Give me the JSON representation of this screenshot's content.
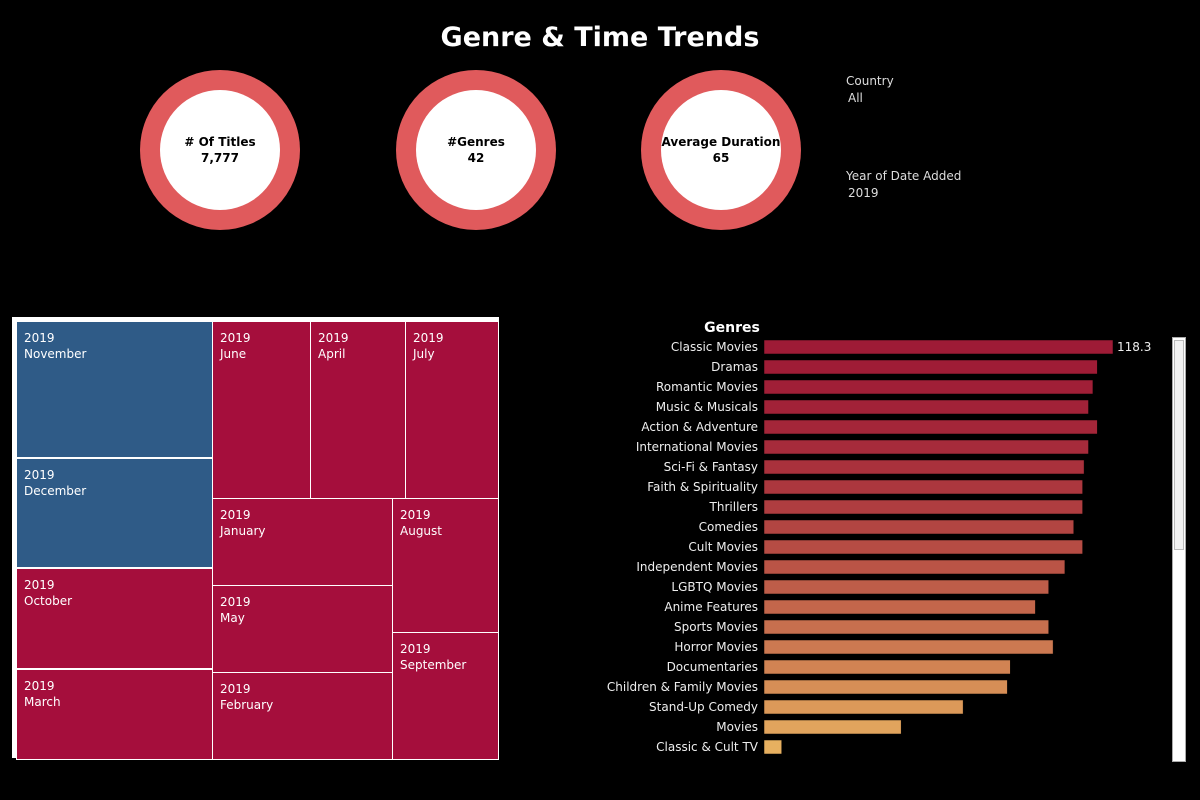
{
  "dashboard": {
    "title": "Genre & Time Trends"
  },
  "kpis": [
    {
      "label": "# Of Titles",
      "value": "7,777"
    },
    {
      "label": "#Genres",
      "value": "42"
    },
    {
      "label": "Average Duration",
      "value": "65"
    }
  ],
  "filters": {
    "country": {
      "label": "Country",
      "value": "All"
    },
    "year": {
      "label": "Year of Date Added",
      "value": "2019"
    }
  },
  "colors": {
    "kpi_ring": "#e05a5c",
    "treemap_blue": "#2f5b87",
    "treemap_red": "#a50e3c",
    "bar_top": "#9e1b36",
    "bar_bottom": "#e7b060"
  },
  "chart_data": [
    {
      "type": "treemap",
      "tiles": [
        {
          "year": "2019",
          "month": "November",
          "color": "#2f5b87"
        },
        {
          "year": "2019",
          "month": "December",
          "color": "#2f5b87"
        },
        {
          "year": "2019",
          "month": "October",
          "color": "#a50e3c"
        },
        {
          "year": "2019",
          "month": "March",
          "color": "#a50e3c"
        },
        {
          "year": "2019",
          "month": "June",
          "color": "#a50e3c"
        },
        {
          "year": "2019",
          "month": "April",
          "color": "#a50e3c"
        },
        {
          "year": "2019",
          "month": "July",
          "color": "#a50e3c"
        },
        {
          "year": "2019",
          "month": "January",
          "color": "#a50e3c"
        },
        {
          "year": "2019",
          "month": "May",
          "color": "#a50e3c"
        },
        {
          "year": "2019",
          "month": "February",
          "color": "#a50e3c"
        },
        {
          "year": "2019",
          "month": "August",
          "color": "#a50e3c"
        },
        {
          "year": "2019",
          "month": "September",
          "color": "#a50e3c"
        }
      ]
    },
    {
      "type": "bar",
      "orientation": "horizontal",
      "title": "Genres",
      "categories": [
        "Classic Movies",
        "Dramas",
        "Romantic Movies",
        "Music & Musicals",
        "Action & Adventure",
        "International Movies",
        "Sci-Fi & Fantasy",
        "Faith & Spirituality",
        "Thrillers",
        "Comedies",
        "Cult Movies",
        "Independent Movies",
        "LGBTQ Movies",
        "Anime Features",
        "Sports Movies",
        "Horror Movies",
        "Documentaries",
        "Children & Family Movies",
        "Stand-Up Comedy",
        "Movies",
        "Classic & Cult TV"
      ],
      "values": [
        118.3,
        113.0,
        111.5,
        110.0,
        113.0,
        110.0,
        108.5,
        108.0,
        108.0,
        105.0,
        108.0,
        102.0,
        96.5,
        92.0,
        96.5,
        98.0,
        83.5,
        82.5,
        67.5,
        46.5,
        6.0
      ],
      "data_labels": [
        "118.3"
      ],
      "xlim": [
        0,
        118.3
      ]
    }
  ]
}
